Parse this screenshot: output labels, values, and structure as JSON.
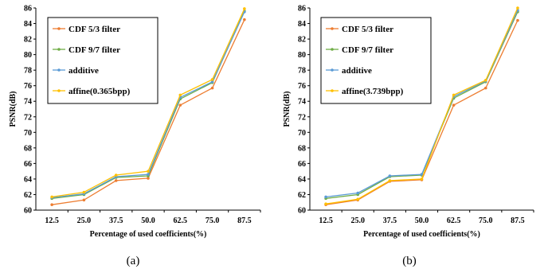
{
  "chart_data": [
    {
      "type": "line",
      "panel": "(a)",
      "xlabel": "Percentage of used coefficients(%)",
      "ylabel": "PSNR(dB)",
      "ylim": [
        60,
        86
      ],
      "yticks": [
        "60",
        "62",
        "64",
        "66",
        "68",
        "70",
        "72",
        "74",
        "76",
        "78",
        "80",
        "82",
        "84",
        "86"
      ],
      "categories": [
        "12.5",
        "25.0",
        "37.5",
        "50.0",
        "62.5",
        "75.0",
        "87.5"
      ],
      "legend_position": "top-left",
      "grid": false,
      "series": [
        {
          "name": "CDF 5/3 filter",
          "color": "#ED7D31",
          "values": [
            60.7,
            61.3,
            63.8,
            64.1,
            73.5,
            75.7,
            84.5
          ]
        },
        {
          "name": "CDF 9/7 filter",
          "color": "#70AD47",
          "values": [
            61.5,
            62.0,
            64.2,
            64.4,
            74.3,
            76.4,
            85.6
          ]
        },
        {
          "name": "additive",
          "color": "#5B9BD5",
          "values": [
            61.6,
            62.1,
            64.3,
            64.6,
            74.5,
            76.5,
            85.5
          ]
        },
        {
          "name": "affine(0.365bpp)",
          "color": "#FFC000",
          "values": [
            61.7,
            62.3,
            64.5,
            65.0,
            74.8,
            76.8,
            85.9
          ]
        }
      ]
    },
    {
      "type": "line",
      "panel": "(b)",
      "xlabel": "Percentage of used coefficients(%)",
      "ylabel": "PSNR(dB)",
      "ylim": [
        60,
        86
      ],
      "yticks": [
        "60",
        "62",
        "64",
        "66",
        "68",
        "70",
        "72",
        "74",
        "76",
        "78",
        "80",
        "82",
        "84",
        "86"
      ],
      "categories": [
        "12.5",
        "25.0",
        "37.5",
        "50.0",
        "62.5",
        "75.0",
        "87.5"
      ],
      "legend_position": "top-left",
      "grid": false,
      "series": [
        {
          "name": "CDF 5/3 filter",
          "color": "#ED7D31",
          "values": [
            60.7,
            61.3,
            63.7,
            63.9,
            73.5,
            75.7,
            84.4
          ]
        },
        {
          "name": "CDF 9/7 filter",
          "color": "#70AD47",
          "values": [
            61.5,
            62.0,
            64.3,
            64.5,
            74.4,
            76.5,
            85.5
          ]
        },
        {
          "name": "additive",
          "color": "#5B9BD5",
          "values": [
            61.7,
            62.2,
            64.4,
            64.6,
            74.6,
            76.6,
            85.7
          ]
        },
        {
          "name": "affine(3.739bpp)",
          "color": "#FFC000",
          "values": [
            60.8,
            61.4,
            63.8,
            64.0,
            74.8,
            76.7,
            86.0
          ]
        }
      ]
    }
  ]
}
